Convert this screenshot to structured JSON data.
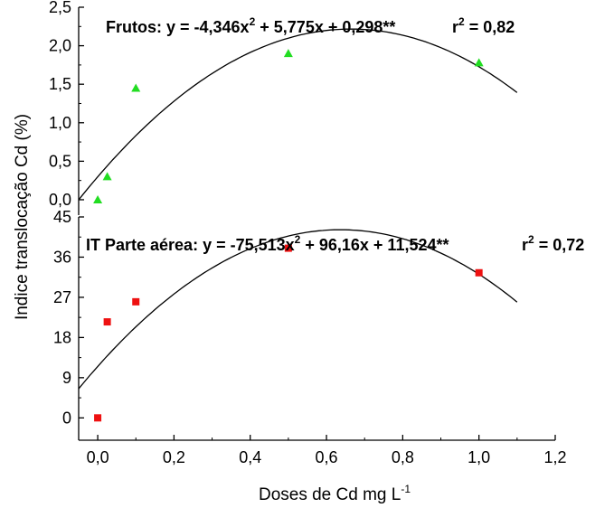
{
  "figure": {
    "ylabel": "Indice translocação Cd (%)",
    "xlabel": "Doses de Cd mg L",
    "xlabel_sup": "-1"
  },
  "chart_data": [
    {
      "type": "scatter",
      "panel": "top",
      "equation": "Frutos: y = -4,346x",
      "equation_sup": "2",
      "equation_rest": " + 5,775x + 0,298**",
      "r2_prefix": "r",
      "r2_sup": "2",
      "r2_rest": " = 0,82",
      "coef": {
        "a": -4.346,
        "b": 5.775,
        "c": 0.298
      },
      "fit_range": [
        -0.1,
        1.1
      ],
      "xlim": [
        -0.05,
        1.2
      ],
      "ylim": [
        -0.2,
        2.5
      ],
      "yticks": [
        0.0,
        0.5,
        1.0,
        1.5,
        2.0,
        2.5
      ],
      "yticklabels": [
        "0,0",
        "0,5",
        "1,0",
        "1,5",
        "2,0",
        "2,5"
      ],
      "marker": "triangle",
      "color": "#22dd22",
      "series": [
        {
          "x": [
            0.0,
            0.025,
            0.1,
            0.5,
            1.0
          ],
          "y": [
            0.0,
            0.3,
            1.45,
            1.9,
            1.78
          ]
        }
      ]
    },
    {
      "type": "scatter",
      "panel": "bottom",
      "equation": "IT Parte aérea: y = -75,513x",
      "equation_sup": "2",
      "equation_rest": " + 96,16x + 11,524**",
      "r2_prefix": "r",
      "r2_sup": "2",
      "r2_rest": " = 0,72",
      "coef": {
        "a": -75.513,
        "b": 96.16,
        "c": 11.524
      },
      "fit_range": [
        -0.1,
        1.1
      ],
      "xlim": [
        -0.05,
        1.2
      ],
      "ylim": [
        -5,
        45
      ],
      "yticks": [
        0,
        9,
        18,
        27,
        36,
        45
      ],
      "yticklabels": [
        "0",
        "9",
        "18",
        "27",
        "36",
        "45"
      ],
      "marker": "square",
      "color": "#ee1111",
      "series": [
        {
          "x": [
            0.0,
            0.025,
            0.1,
            0.5,
            1.0
          ],
          "y": [
            0.0,
            21.5,
            26.0,
            38.0,
            32.5
          ]
        }
      ],
      "xticks": [
        0.0,
        0.2,
        0.4,
        0.6,
        0.8,
        1.0,
        1.2
      ],
      "xticklabels": [
        "0,0",
        "0,2",
        "0,4",
        "0,6",
        "0,8",
        "1,0",
        "1,2"
      ]
    }
  ]
}
